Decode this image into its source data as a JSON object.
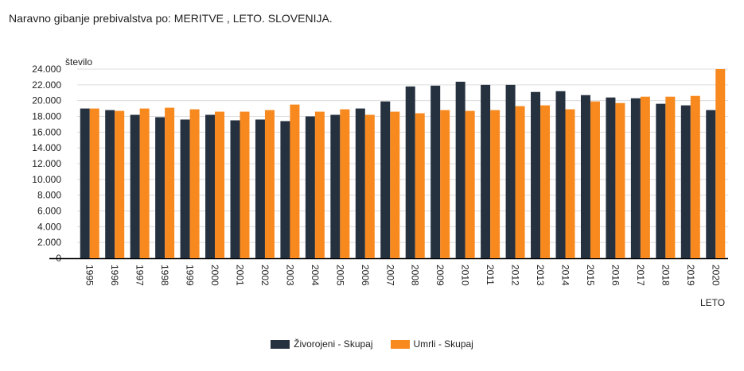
{
  "chart_data": {
    "type": "bar",
    "title": "Naravno gibanje prebivalstva po: MERITVE ,  LETO. SLOVENIJA.",
    "xlabel": "LETO",
    "ylabel": "število",
    "ylim": [
      0,
      24000
    ],
    "yticks": [
      0,
      2000,
      4000,
      6000,
      8000,
      10000,
      12000,
      14000,
      16000,
      18000,
      20000,
      22000,
      24000
    ],
    "ytick_labels": [
      "0",
      "2.000",
      "4.000",
      "6.000",
      "8.000",
      "10.000",
      "12.000",
      "14.000",
      "16.000",
      "18.000",
      "20.000",
      "22.000",
      "24.000"
    ],
    "grid": true,
    "legend_position": "bottom",
    "categories": [
      "1995",
      "1996",
      "1997",
      "1998",
      "1999",
      "2000",
      "2001",
      "2002",
      "2003",
      "2004",
      "2005",
      "2006",
      "2007",
      "2008",
      "2009",
      "2010",
      "2011",
      "2012",
      "2013",
      "2014",
      "2015",
      "2016",
      "2017",
      "2018",
      "2019",
      "2020"
    ],
    "series": [
      {
        "name": "Živorojeni - Skupaj",
        "color": "#263140",
        "values": [
          19000,
          18800,
          18200,
          17900,
          17600,
          18200,
          17500,
          17600,
          17400,
          18000,
          18200,
          19000,
          19900,
          21800,
          21900,
          22400,
          22000,
          22000,
          21100,
          21200,
          20700,
          20400,
          20300,
          19600,
          19400,
          18800
        ]
      },
      {
        "name": "Umrli - Skupaj",
        "color": "#f7891f",
        "values": [
          19000,
          18700,
          19000,
          19100,
          18900,
          18600,
          18600,
          18800,
          19500,
          18600,
          18900,
          18200,
          18600,
          18400,
          18800,
          18700,
          18800,
          19300,
          19400,
          18900,
          19900,
          19700,
          20500,
          20500,
          20600,
          24000
        ]
      }
    ]
  }
}
